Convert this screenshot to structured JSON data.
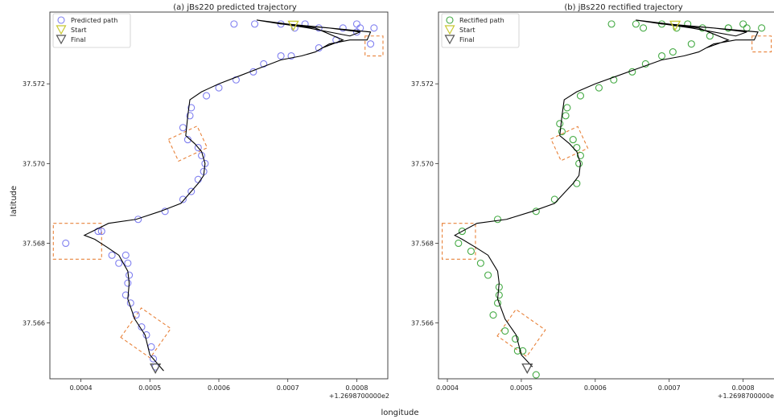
{
  "figure": {
    "shared_xlabel": "longitude",
    "shared_ylabel": "latitude",
    "colors": {
      "predicted_marker": "#8080f0",
      "rectified_marker": "#44aa44",
      "start_marker": "#c8c832",
      "final_marker": "#555555",
      "path_line": "#000000",
      "highlight_box": "#e8823a"
    }
  },
  "chart_data": [
    {
      "type": "scatter",
      "panel_letter": "(a)",
      "title": "jBs220 predicted trajectory",
      "xlabel": "longitude",
      "ylabel": "latitude",
      "x_offset_label": "+1.2698700000e2",
      "xlim": [
        0.000355,
        0.000845
      ],
      "ylim": [
        37.5646,
        37.5738
      ],
      "xticks": [
        "0.0004",
        "0.0005",
        "0.0006",
        "0.0007",
        "0.0008"
      ],
      "xtick_values": [
        0.0004,
        0.0005,
        0.0006,
        0.0007,
        0.0008
      ],
      "yticks": [
        "37.566",
        "37.568",
        "37.570",
        "37.572"
      ],
      "ytick_values": [
        37.566,
        37.568,
        37.57,
        37.572
      ],
      "legend": [
        "Predicted path",
        "Start",
        "Final"
      ],
      "legend_position": "top-left",
      "series": [
        {
          "name": "Predicted path",
          "marker": "open-circle",
          "x": [
            0.000508,
            0.000505,
            0.000502,
            0.000495,
            0.000488,
            0.00048,
            0.000472,
            0.000465,
            0.000468,
            0.00047,
            0.000468,
            0.000465,
            0.000455,
            0.000445,
            0.000425,
            0.000378,
            0.00043,
            0.000483,
            0.000522,
            0.000548,
            0.00056,
            0.00057,
            0.000578,
            0.00058,
            0.000575,
            0.00057,
            0.000555,
            0.000548,
            0.000558,
            0.00056,
            0.000582,
            0.0006,
            0.000625,
            0.00065,
            0.000665,
            0.00069,
            0.000705,
            0.000745,
            0.00077,
            0.0008,
            0.00082,
            0.0008,
            0.000825,
            0.000805,
            0.00078,
            0.000745,
            0.000725,
            0.00071,
            0.00069,
            0.000652,
            0.000622
          ],
          "y": [
            37.5649,
            37.5651,
            37.5654,
            37.5657,
            37.5659,
            37.5662,
            37.5665,
            37.5667,
            37.567,
            37.5672,
            37.5675,
            37.5677,
            37.5675,
            37.5677,
            37.5683,
            37.568,
            37.5683,
            37.5686,
            37.5688,
            37.5691,
            37.5693,
            37.5696,
            37.5698,
            37.57,
            37.5702,
            37.5704,
            37.5706,
            37.5709,
            37.5712,
            37.5714,
            37.5717,
            37.5719,
            37.5721,
            37.5723,
            37.5725,
            37.5727,
            37.5727,
            37.5729,
            37.5731,
            37.5733,
            37.573,
            37.5735,
            37.5734,
            37.5734,
            37.5734,
            37.5734,
            37.5735,
            37.5734,
            37.5735,
            37.5735,
            37.5735
          ]
        },
        {
          "name": "Black path line",
          "marker": "line",
          "x": [
            0.00052,
            0.0005,
            0.000493,
            0.000478,
            0.000468,
            0.00047,
            0.000468,
            0.000455,
            0.000438,
            0.00042,
            0.000405,
            0.00044,
            0.00048,
            0.000515,
            0.000545,
            0.00056,
            0.00057,
            0.000578,
            0.00058,
            0.000575,
            0.000565,
            0.000552,
            0.000555,
            0.000558,
            0.000575,
            0.0006,
            0.00063,
            0.00066,
            0.00069,
            0.00072,
            0.00074,
            0.00076,
            0.00079,
            0.000815,
            0.00082,
            0.00076,
            0.0007,
            0.000655,
            0.00073,
            0.00079,
            0.000805,
            0.00076,
            0.00069,
            0.000655,
            0.00074,
            0.00078,
            0.00075
          ],
          "y": [
            37.5648,
            37.5652,
            37.5657,
            37.5661,
            37.5666,
            37.567,
            37.5673,
            37.5677,
            37.5679,
            37.5681,
            37.5682,
            37.5685,
            37.5686,
            37.5688,
            37.569,
            37.5693,
            37.5695,
            37.5697,
            37.57,
            37.5703,
            37.5705,
            37.5707,
            37.5712,
            37.5716,
            37.5718,
            37.572,
            37.5722,
            37.5724,
            37.5726,
            37.5727,
            37.5728,
            37.573,
            37.5731,
            37.5731,
            37.5733,
            37.5734,
            37.5735,
            37.5736,
            37.5734,
            37.5732,
            37.5733,
            37.5734,
            37.5735,
            37.5736,
            37.5734,
            37.5731,
            37.5729
          ]
        },
        {
          "name": "Start",
          "marker": "triangle-down",
          "x": [
            0.000708
          ],
          "y": [
            37.57345
          ]
        },
        {
          "name": "Final",
          "marker": "triangle-down",
          "x": [
            0.000508
          ],
          "y": [
            37.56485
          ]
        }
      ],
      "highlight_boxes": [
        {
          "x": [
            0.00036,
            0.00043
          ],
          "y": [
            37.5676,
            37.5685
          ],
          "angle": 0
        },
        {
          "x": [
            0.000532,
            0.000578
          ],
          "y": [
            37.5702,
            37.5708
          ],
          "angle": -25
        },
        {
          "x": [
            0.000812,
            0.000838
          ],
          "y": [
            37.5727,
            37.5732
          ],
          "angle": 0
        },
        {
          "x": [
            0.000468,
            0.00052
          ],
          "y": [
            37.5653,
            37.5662
          ],
          "angle": -55
        }
      ]
    },
    {
      "type": "scatter",
      "panel_letter": "(b)",
      "title": "jBs220 rectified trajectory",
      "xlabel": "longitude",
      "ylabel": "latitude",
      "x_offset_label": "+1.2698700000e2",
      "xlim": [
        0.000388,
        0.000845
      ],
      "ylim": [
        37.5646,
        37.5738
      ],
      "xticks": [
        "0.0004",
        "0.0005",
        "0.0006",
        "0.0007",
        "0.0008"
      ],
      "xtick_values": [
        0.0004,
        0.0005,
        0.0006,
        0.0007,
        0.0008
      ],
      "yticks": [
        "37.566",
        "37.568",
        "37.570",
        "37.572"
      ],
      "ytick_values": [
        37.566,
        37.568,
        37.57,
        37.572
      ],
      "legend": [
        "Rectified path",
        "Start",
        "Final"
      ],
      "legend_position": "top-left",
      "series": [
        {
          "name": "Rectified path",
          "marker": "open-circle",
          "x": [
            0.00052,
            0.000502,
            0.000495,
            0.000492,
            0.000478,
            0.000462,
            0.000468,
            0.00047,
            0.00047,
            0.000455,
            0.000445,
            0.000432,
            0.000415,
            0.00042,
            0.000468,
            0.00052,
            0.000545,
            0.000575,
            0.000578,
            0.00058,
            0.000575,
            0.00057,
            0.000555,
            0.000552,
            0.00056,
            0.000562,
            0.00058,
            0.000605,
            0.000625,
            0.00065,
            0.000668,
            0.00069,
            0.000705,
            0.00073,
            0.000755,
            0.00078,
            0.0008,
            0.000825,
            0.000805,
            0.00078,
            0.000745,
            0.000725,
            0.00071,
            0.00069,
            0.000665,
            0.000655,
            0.000622
          ],
          "y": [
            37.5647,
            37.5653,
            37.5653,
            37.5656,
            37.5658,
            37.5662,
            37.5665,
            37.5667,
            37.5669,
            37.5672,
            37.5675,
            37.5678,
            37.568,
            37.5683,
            37.5686,
            37.5688,
            37.5691,
            37.5695,
            37.57,
            37.5702,
            37.5704,
            37.5706,
            37.5708,
            37.571,
            37.5712,
            37.5714,
            37.5717,
            37.5719,
            37.5721,
            37.5723,
            37.5725,
            37.5727,
            37.5728,
            37.573,
            37.5732,
            37.5734,
            37.5735,
            37.5734,
            37.5734,
            37.5734,
            37.5734,
            37.5735,
            37.5734,
            37.5735,
            37.5734,
            37.5735,
            37.5735
          ]
        },
        {
          "name": "Black path line",
          "marker": "line",
          "x": [
            0.000515,
            0.0005,
            0.000493,
            0.000478,
            0.000468,
            0.00047,
            0.000468,
            0.000455,
            0.000438,
            0.00042,
            0.00041,
            0.00044,
            0.00048,
            0.000515,
            0.000545,
            0.00056,
            0.00057,
            0.000578,
            0.00058,
            0.000575,
            0.000565,
            0.000552,
            0.000555,
            0.000558,
            0.000575,
            0.0006,
            0.00063,
            0.00066,
            0.00069,
            0.00072,
            0.00074,
            0.00076,
            0.00079,
            0.000815,
            0.00082,
            0.00076,
            0.0007,
            0.000655,
            0.00073,
            0.00079,
            0.000805,
            0.00076,
            0.00069,
            0.000655,
            0.00074,
            0.00078,
            0.00075
          ],
          "y": [
            37.5649,
            37.5652,
            37.5657,
            37.5661,
            37.5666,
            37.567,
            37.5673,
            37.5677,
            37.5679,
            37.5681,
            37.5682,
            37.5685,
            37.5686,
            37.5688,
            37.569,
            37.5693,
            37.5695,
            37.5697,
            37.57,
            37.5703,
            37.5705,
            37.5707,
            37.5712,
            37.5716,
            37.5718,
            37.572,
            37.5722,
            37.5724,
            37.5726,
            37.5727,
            37.5728,
            37.573,
            37.5731,
            37.5731,
            37.5733,
            37.5734,
            37.5735,
            37.5736,
            37.5734,
            37.5732,
            37.5733,
            37.5734,
            37.5735,
            37.5736,
            37.5734,
            37.5731,
            37.5729
          ]
        },
        {
          "name": "Start",
          "marker": "triangle-down",
          "x": [
            0.000708
          ],
          "y": [
            37.57345
          ]
        },
        {
          "name": "Final",
          "marker": "triangle-down",
          "x": [
            0.000508
          ],
          "y": [
            37.56485
          ]
        }
      ],
      "highlight_boxes": [
        {
          "x": [
            0.000393,
            0.000438
          ],
          "y": [
            37.5676,
            37.5685
          ],
          "angle": 0
        },
        {
          "x": [
            0.000545,
            0.000585
          ],
          "y": [
            37.5702,
            37.5708
          ],
          "angle": -25
        },
        {
          "x": [
            0.000812,
            0.000838
          ],
          "y": [
            37.5728,
            37.5732
          ],
          "angle": 0
        },
        {
          "x": [
            0.000478,
            0.000522
          ],
          "y": [
            37.5653,
            37.5662
          ],
          "angle": -55
        }
      ]
    }
  ]
}
